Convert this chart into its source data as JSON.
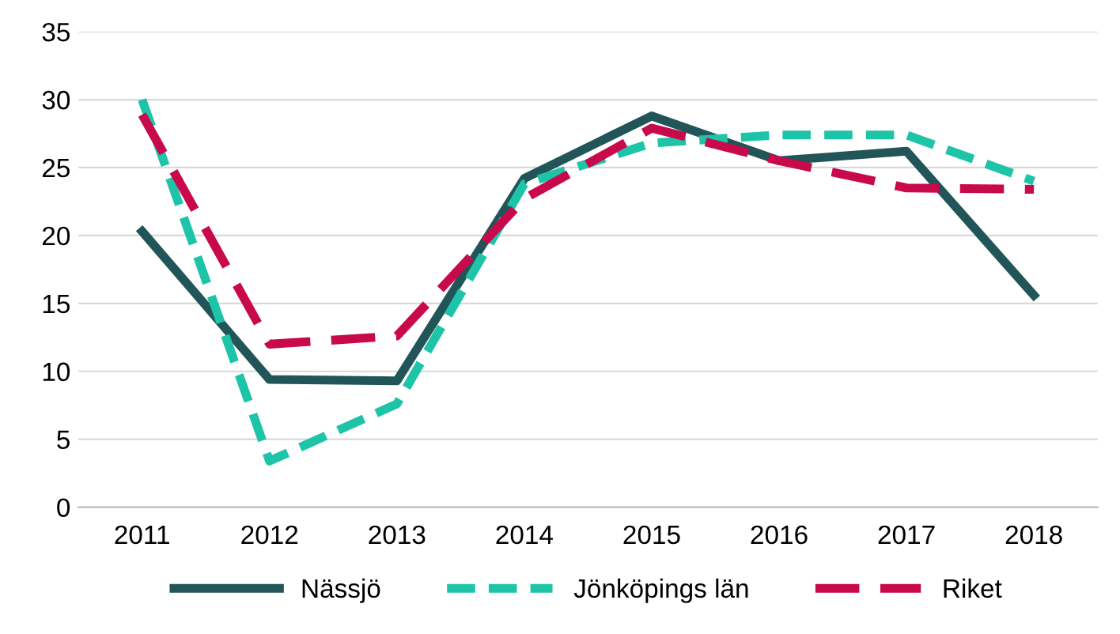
{
  "chart_data": {
    "type": "line",
    "categories": [
      "2011",
      "2012",
      "2013",
      "2014",
      "2015",
      "2016",
      "2017",
      "2018"
    ],
    "series": [
      {
        "name": "Nässjö",
        "color": "#215558",
        "line_style": "solid",
        "values": [
          20.3,
          9.4,
          9.3,
          24.2,
          28.8,
          25.5,
          26.2,
          15.6
        ]
      },
      {
        "name": "Jönköpings län",
        "color": "#1dc4a8",
        "line_style": "dashed",
        "values": [
          30,
          3.4,
          7.6,
          23.8,
          26.8,
          27.4,
          27.4,
          24
        ]
      },
      {
        "name": "Riket",
        "color": "#c8094b",
        "line_style": "dashed",
        "values": [
          28.9,
          12,
          12.6,
          22.7,
          27.9,
          25.5,
          23.5,
          23.4
        ]
      }
    ],
    "ylim": [
      0,
      35
    ],
    "yticks": [
      0,
      5,
      10,
      15,
      20,
      25,
      30,
      35
    ],
    "grid": "y",
    "legend": "bottom",
    "marker": "none"
  }
}
